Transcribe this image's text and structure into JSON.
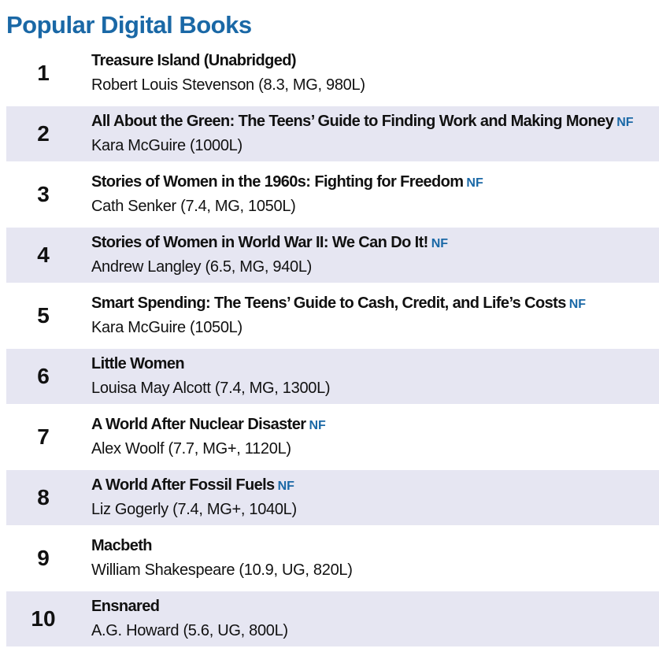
{
  "header": {
    "title": "Popular Digital Books"
  },
  "books": [
    {
      "rank": "1",
      "title": "Treasure Island (Unabridged)",
      "nf": "",
      "author": "Robert Louis Stevenson (8.3, MG, 980L)"
    },
    {
      "rank": "2",
      "title": "All About the Green: The Teens’ Guide to Finding Work and Making Money",
      "nf": "NF",
      "author": "Kara McGuire (1000L)"
    },
    {
      "rank": "3",
      "title": "Stories of Women in the 1960s: Fighting for Freedom",
      "nf": "NF",
      "author": "Cath Senker (7.4, MG, 1050L)"
    },
    {
      "rank": "4",
      "title": "Stories of Women in World War II: We Can Do It!",
      "nf": "NF",
      "author": "Andrew Langley (6.5, MG, 940L)"
    },
    {
      "rank": "5",
      "title": "Smart Spending: The Teens’ Guide to Cash, Credit, and Life’s Costs",
      "nf": "NF",
      "author": "Kara McGuire (1050L)"
    },
    {
      "rank": "6",
      "title": "Little Women",
      "nf": "",
      "author": "Louisa May Alcott (7.4, MG, 1300L)"
    },
    {
      "rank": "7",
      "title": "A World After Nuclear Disaster",
      "nf": "NF",
      "author": "Alex Woolf (7.7, MG+, 1120L)"
    },
    {
      "rank": "8",
      "title": "A World After Fossil Fuels",
      "nf": "NF",
      "author": "Liz Gogerly (7.4, MG+, 1040L)"
    },
    {
      "rank": "9",
      "title": "Macbeth",
      "nf": "",
      "author": "William Shakespeare (10.9, UG, 820L)"
    },
    {
      "rank": "10",
      "title": "Ensnared",
      "nf": "",
      "author": "A.G. Howard (5.6, UG, 800L)"
    }
  ],
  "colors": {
    "heading": "#1a68a6",
    "nf_badge": "#1a68a6",
    "alt_row": "#e6e6f2",
    "text": "#111111"
  }
}
